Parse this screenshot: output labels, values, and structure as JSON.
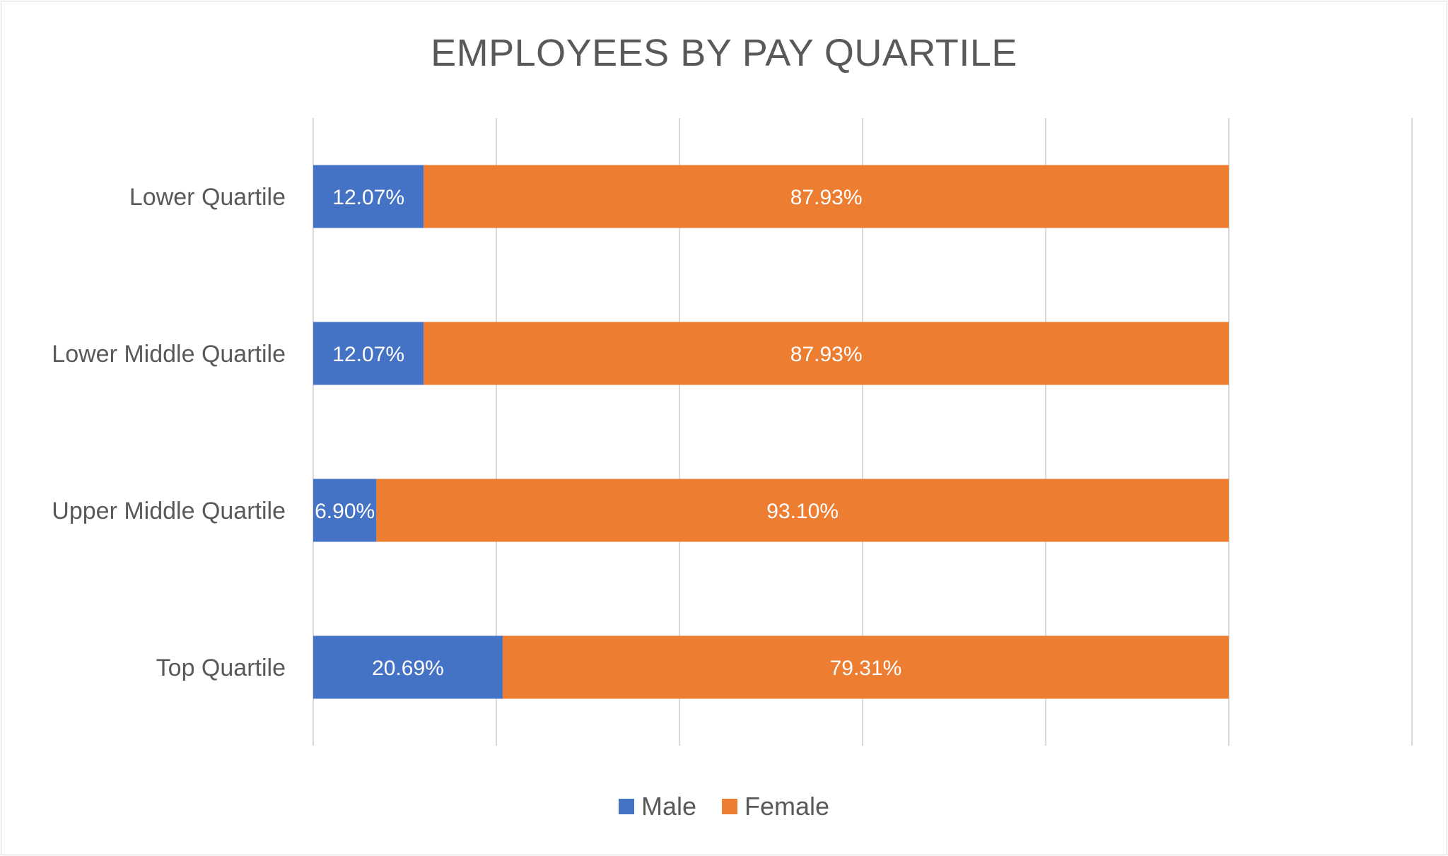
{
  "chart_data": {
    "type": "bar",
    "orientation": "horizontal",
    "stacked": true,
    "title": "EMPLOYEES BY PAY QUARTILE",
    "categories": [
      "Lower Quartile",
      "Lower Middle Quartile",
      "Upper Middle Quartile",
      "Top Quartile"
    ],
    "series": [
      {
        "name": "Male",
        "color": "#4472C4",
        "values": [
          12.07,
          12.07,
          6.9,
          20.69
        ],
        "labels": [
          "12.07%",
          "12.07%",
          "6.90%",
          "20.69%"
        ]
      },
      {
        "name": "Female",
        "color": "#ED7D31",
        "values": [
          87.93,
          87.93,
          93.1,
          79.31
        ],
        "labels": [
          "87.93%",
          "87.93%",
          "93.10%",
          "79.31%"
        ]
      }
    ],
    "xlim": [
      0,
      120
    ],
    "x_gridlines": [
      0,
      20,
      40,
      60,
      80,
      100,
      120
    ],
    "grid": true,
    "tick_labels_shown": false,
    "legend": "bottom"
  }
}
